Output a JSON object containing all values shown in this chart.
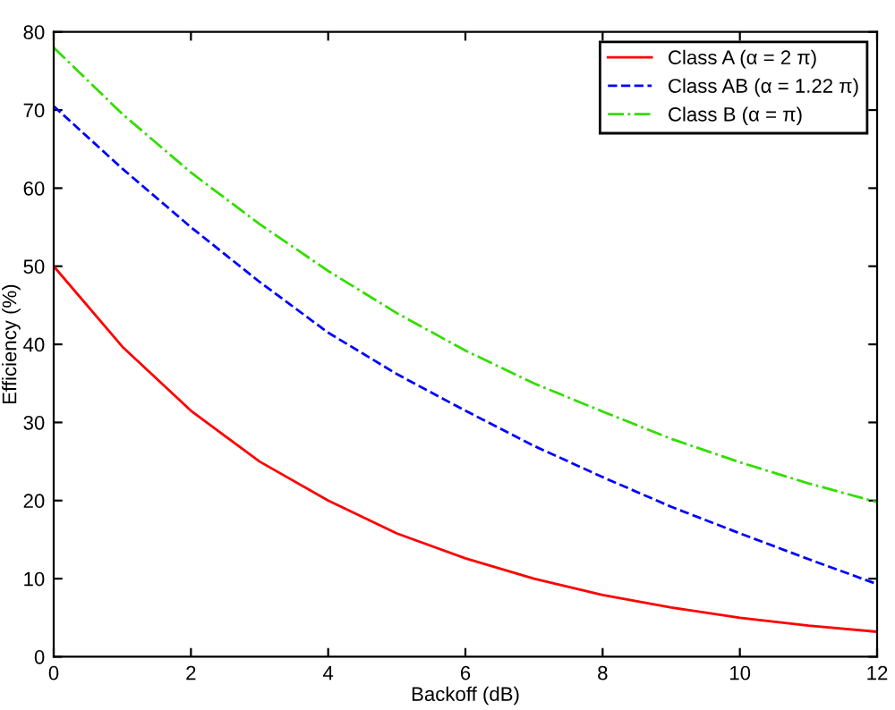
{
  "chart_data": {
    "type": "line",
    "xlabel": "Backoff (dB)",
    "ylabel": "Efficiency (%)",
    "x": [
      0,
      1,
      2,
      3,
      4,
      5,
      6,
      7,
      8,
      9,
      10,
      11,
      12
    ],
    "series": [
      {
        "name": "Class A (α = 2 π)",
        "color": "#ff0000",
        "line_style": "solid",
        "values": [
          50,
          39.7,
          31.5,
          25,
          20,
          15.8,
          12.6,
          10,
          7.9,
          6.3,
          5,
          4,
          3.2
        ]
      },
      {
        "name": "Class AB (α = 1.22 π)",
        "color": "#0000ff",
        "line_style": "dashed",
        "values": [
          70.5,
          62.5,
          55,
          48,
          41.5,
          36.2,
          31.5,
          27,
          23,
          19.2,
          15.8,
          12.5,
          9.3
        ]
      },
      {
        "name": "Class B (α = π)",
        "color": "#33dd00",
        "line_style": "dashdot",
        "values": [
          78,
          69.5,
          62,
          55.4,
          49.4,
          44,
          39.2,
          35,
          31.4,
          27.9,
          24.9,
          22.2,
          19.8
        ]
      }
    ],
    "xlim": [
      0,
      12
    ],
    "ylim": [
      0,
      80
    ],
    "xticks": [
      0,
      2,
      4,
      6,
      8,
      10,
      12
    ],
    "yticks": [
      0,
      10,
      20,
      30,
      40,
      50,
      60,
      70,
      80
    ],
    "grid": false,
    "legend": "top right",
    "marker": "none"
  }
}
